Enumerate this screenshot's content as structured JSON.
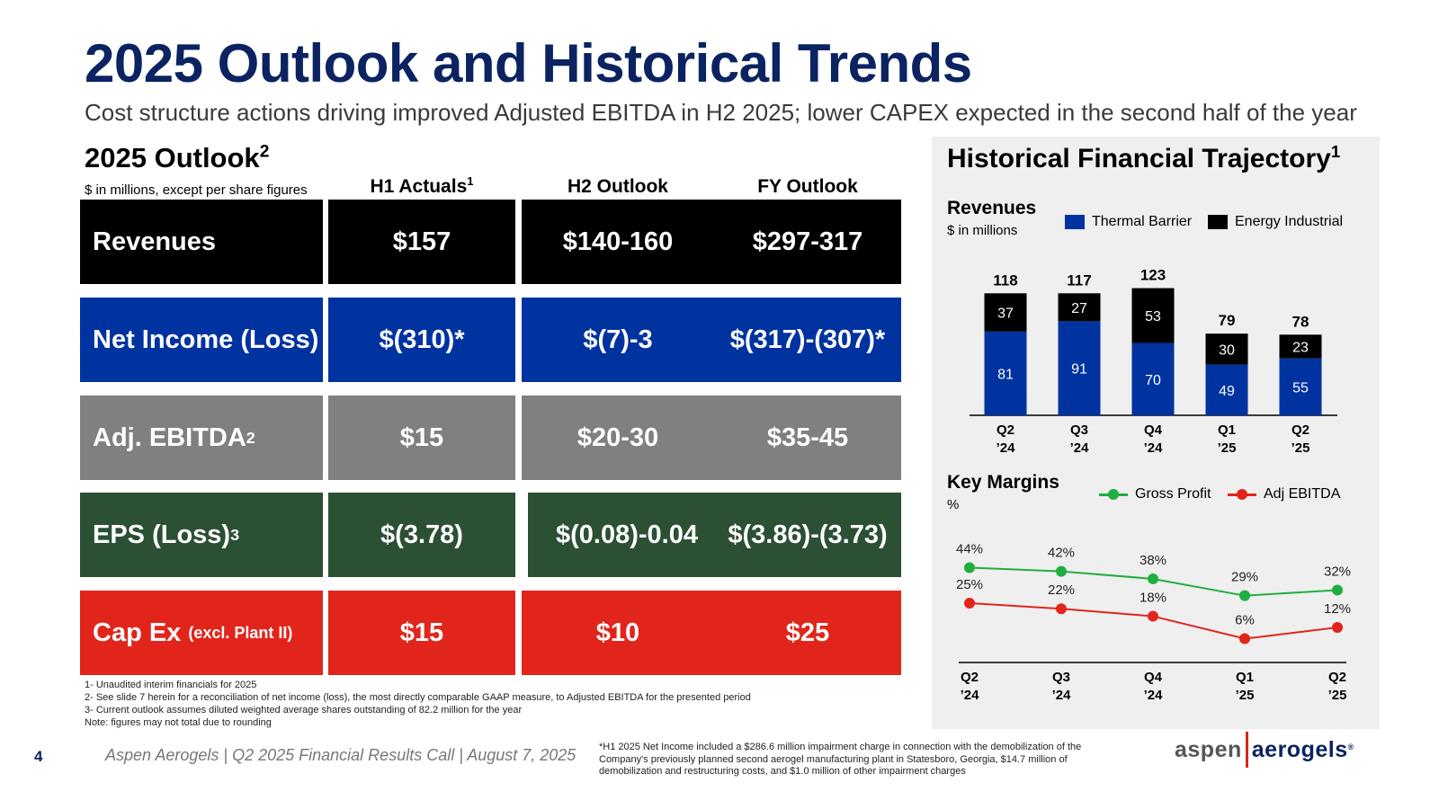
{
  "header": {
    "title": "2025 Outlook and Historical Trends",
    "subtitle": "Cost structure actions driving improved Adjusted EBITDA in H2 2025; lower CAPEX expected in the second half of the year"
  },
  "outlook": {
    "title": "2025 Outlook",
    "title_sup": "2",
    "units": "$ in millions, except per share figures",
    "columns": [
      {
        "label": "H1 Actuals",
        "sup": "1"
      },
      {
        "label": "H2 Outlook",
        "sup": ""
      },
      {
        "label": "FY Outlook",
        "sup": ""
      }
    ],
    "rows": [
      {
        "label": "Revenues",
        "sup": "",
        "small": "",
        "color": "#000000",
        "values": [
          "$157",
          "$140-160",
          "$297-317"
        ]
      },
      {
        "label": "Net Income (Loss)",
        "sup": "",
        "small": "",
        "color": "#0033a0",
        "values": [
          "$(310)*",
          "$(7)-3",
          "$(317)-(307)*"
        ]
      },
      {
        "label": "Adj. EBITDA",
        "sup": "2",
        "small": "",
        "color": "#808080",
        "values": [
          "$15",
          "$20-30",
          "$35-45"
        ]
      },
      {
        "label": "EPS (Loss)",
        "sup": "3",
        "small": "",
        "color": "#2b5034",
        "values": [
          "$(3.78)",
          "$(0.08)-0.04",
          "$(3.86)-(3.73)"
        ]
      },
      {
        "label": "Cap Ex",
        "sup": "",
        "small": "(excl. Plant II)",
        "color": "#e1251b",
        "values": [
          "$15",
          "$10",
          "$25"
        ]
      }
    ],
    "footnotes": [
      "1- Unaudited interim financials for 2025",
      "2- See slide 7 herein for a reconciliation of net income (loss), the most directly comparable GAAP measure, to Adjusted EBITDA for the presented period",
      "3- Current outlook assumes diluted weighted average shares outstanding of 82.2 million for the year",
      "Note: figures may not total due to rounding"
    ]
  },
  "footer": {
    "page": "4",
    "text": "Aspen Aerogels | Q2 2025 Financial Results Call | August 7, 2025",
    "note": "*H1 2025 Net Income included a $286.6 million impairment charge in connection with the demobilization of the Company's previously planned second aerogel manufacturing plant in Statesboro, Georgia, $14.7 million of demobilization and restructuring costs, and $1.0 million of other impairment charges",
    "logo_left": "aspen",
    "logo_right": "aerogels",
    "logo_mark": "®"
  },
  "trajectory": {
    "title": "Historical Financial Trajectory",
    "title_sup": "1",
    "revenues_title": "Revenues",
    "revenues_units": "$ in millions",
    "margins_title": "Key Margins",
    "margins_units": "%"
  },
  "colors": {
    "navy": "#0b2361",
    "thermal_barrier": "#0033a0",
    "energy_industrial": "#000000",
    "gross_profit": "#1fae3f",
    "adj_ebitda": "#e1251b"
  },
  "chart_data": [
    {
      "type": "bar",
      "stacked": true,
      "title": "Revenues",
      "ylabel": "$ in millions",
      "categories": [
        [
          "Q2",
          "’24"
        ],
        [
          "Q3",
          "’24"
        ],
        [
          "Q4",
          "’24"
        ],
        [
          "Q1",
          "’25"
        ],
        [
          "Q2",
          "’25"
        ]
      ],
      "series": [
        {
          "name": "Thermal Barrier",
          "color": "#0033a0",
          "values": [
            81,
            91,
            70,
            49,
            55
          ]
        },
        {
          "name": "Energy Industrial",
          "color": "#000000",
          "values": [
            37,
            27,
            53,
            30,
            23
          ]
        }
      ],
      "totals": [
        118,
        117,
        123,
        79,
        78
      ],
      "ylim": [
        0,
        130
      ],
      "grid": false,
      "legend": "top"
    },
    {
      "type": "line",
      "title": "Key Margins",
      "ylabel": "%",
      "categories": [
        [
          "Q2",
          "’24"
        ],
        [
          "Q3",
          "’24"
        ],
        [
          "Q4",
          "’24"
        ],
        [
          "Q1",
          "’25"
        ],
        [
          "Q2",
          "’25"
        ]
      ],
      "series": [
        {
          "name": "Gross Profit",
          "color": "#1fae3f",
          "values": [
            44,
            42,
            38,
            29,
            32
          ],
          "labels": [
            "44%",
            "42%",
            "38%",
            "29%",
            "32%"
          ]
        },
        {
          "name": "Adj EBITDA",
          "color": "#e1251b",
          "values": [
            25,
            22,
            18,
            6,
            12
          ],
          "labels": [
            "25%",
            "22%",
            "18%",
            "6%",
            "12%"
          ]
        }
      ],
      "ylim": [
        0,
        50
      ],
      "grid": false,
      "legend": "top"
    }
  ]
}
